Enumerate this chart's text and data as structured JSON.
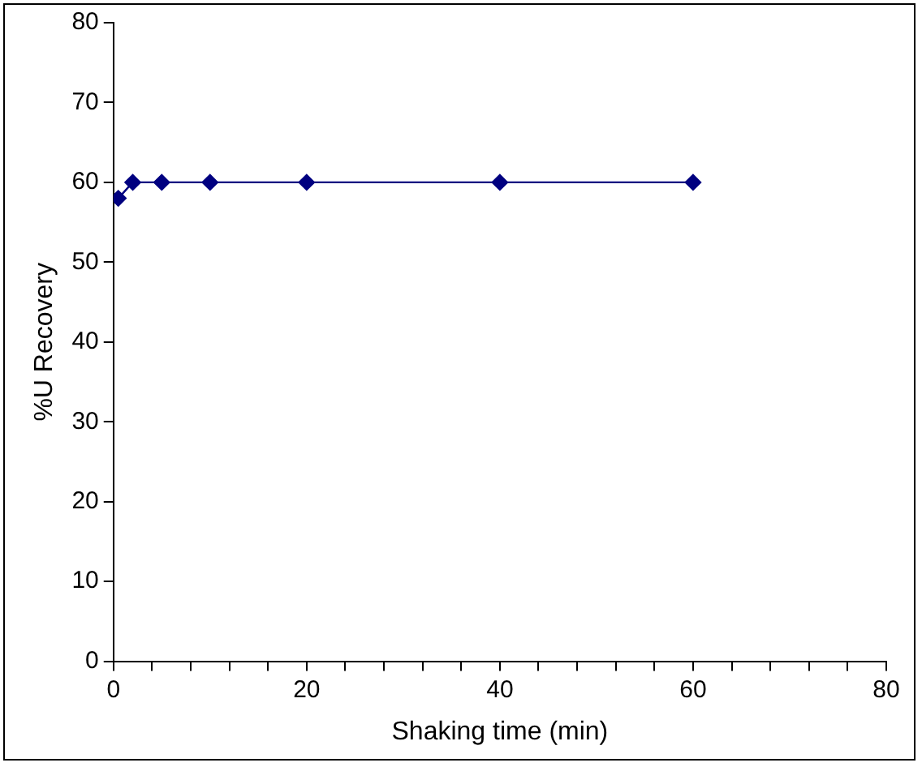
{
  "chart_data": {
    "type": "line",
    "xlabel": "Shaking time (min)",
    "ylabel": "%U Recovery",
    "x": [
      0.5,
      2,
      5,
      10,
      20,
      40,
      60
    ],
    "series": [
      {
        "color": "#000080",
        "values": [
          58,
          60,
          60,
          60,
          60,
          60,
          60
        ]
      }
    ],
    "xlim": [
      0,
      80
    ],
    "xticks": [
      0,
      {
        "value": 4,
        "label": null
      },
      {
        "value": 8,
        "label": null
      },
      {
        "value": 12,
        "label": null
      },
      {
        "value": 16,
        "label": null
      },
      20,
      {
        "value": 24,
        "label": null
      },
      {
        "value": 28,
        "label": null
      },
      {
        "value": 32,
        "label": null
      },
      {
        "value": 36,
        "label": null
      },
      40,
      {
        "value": 44,
        "label": null
      },
      {
        "value": 48,
        "label": null
      },
      {
        "value": 52,
        "label": null
      },
      {
        "value": 56,
        "label": null
      },
      60,
      {
        "value": 64,
        "label": null
      },
      {
        "value": 68,
        "label": null
      },
      {
        "value": 72,
        "label": null
      },
      {
        "value": 76,
        "label": null
      },
      80
    ],
    "ylim": [
      0,
      80
    ],
    "yticks": [
      0,
      10,
      20,
      30,
      40,
      50,
      60,
      70,
      80
    ],
    "grid": false,
    "legend": false,
    "marker": "diamond",
    "line_style": "solid"
  }
}
